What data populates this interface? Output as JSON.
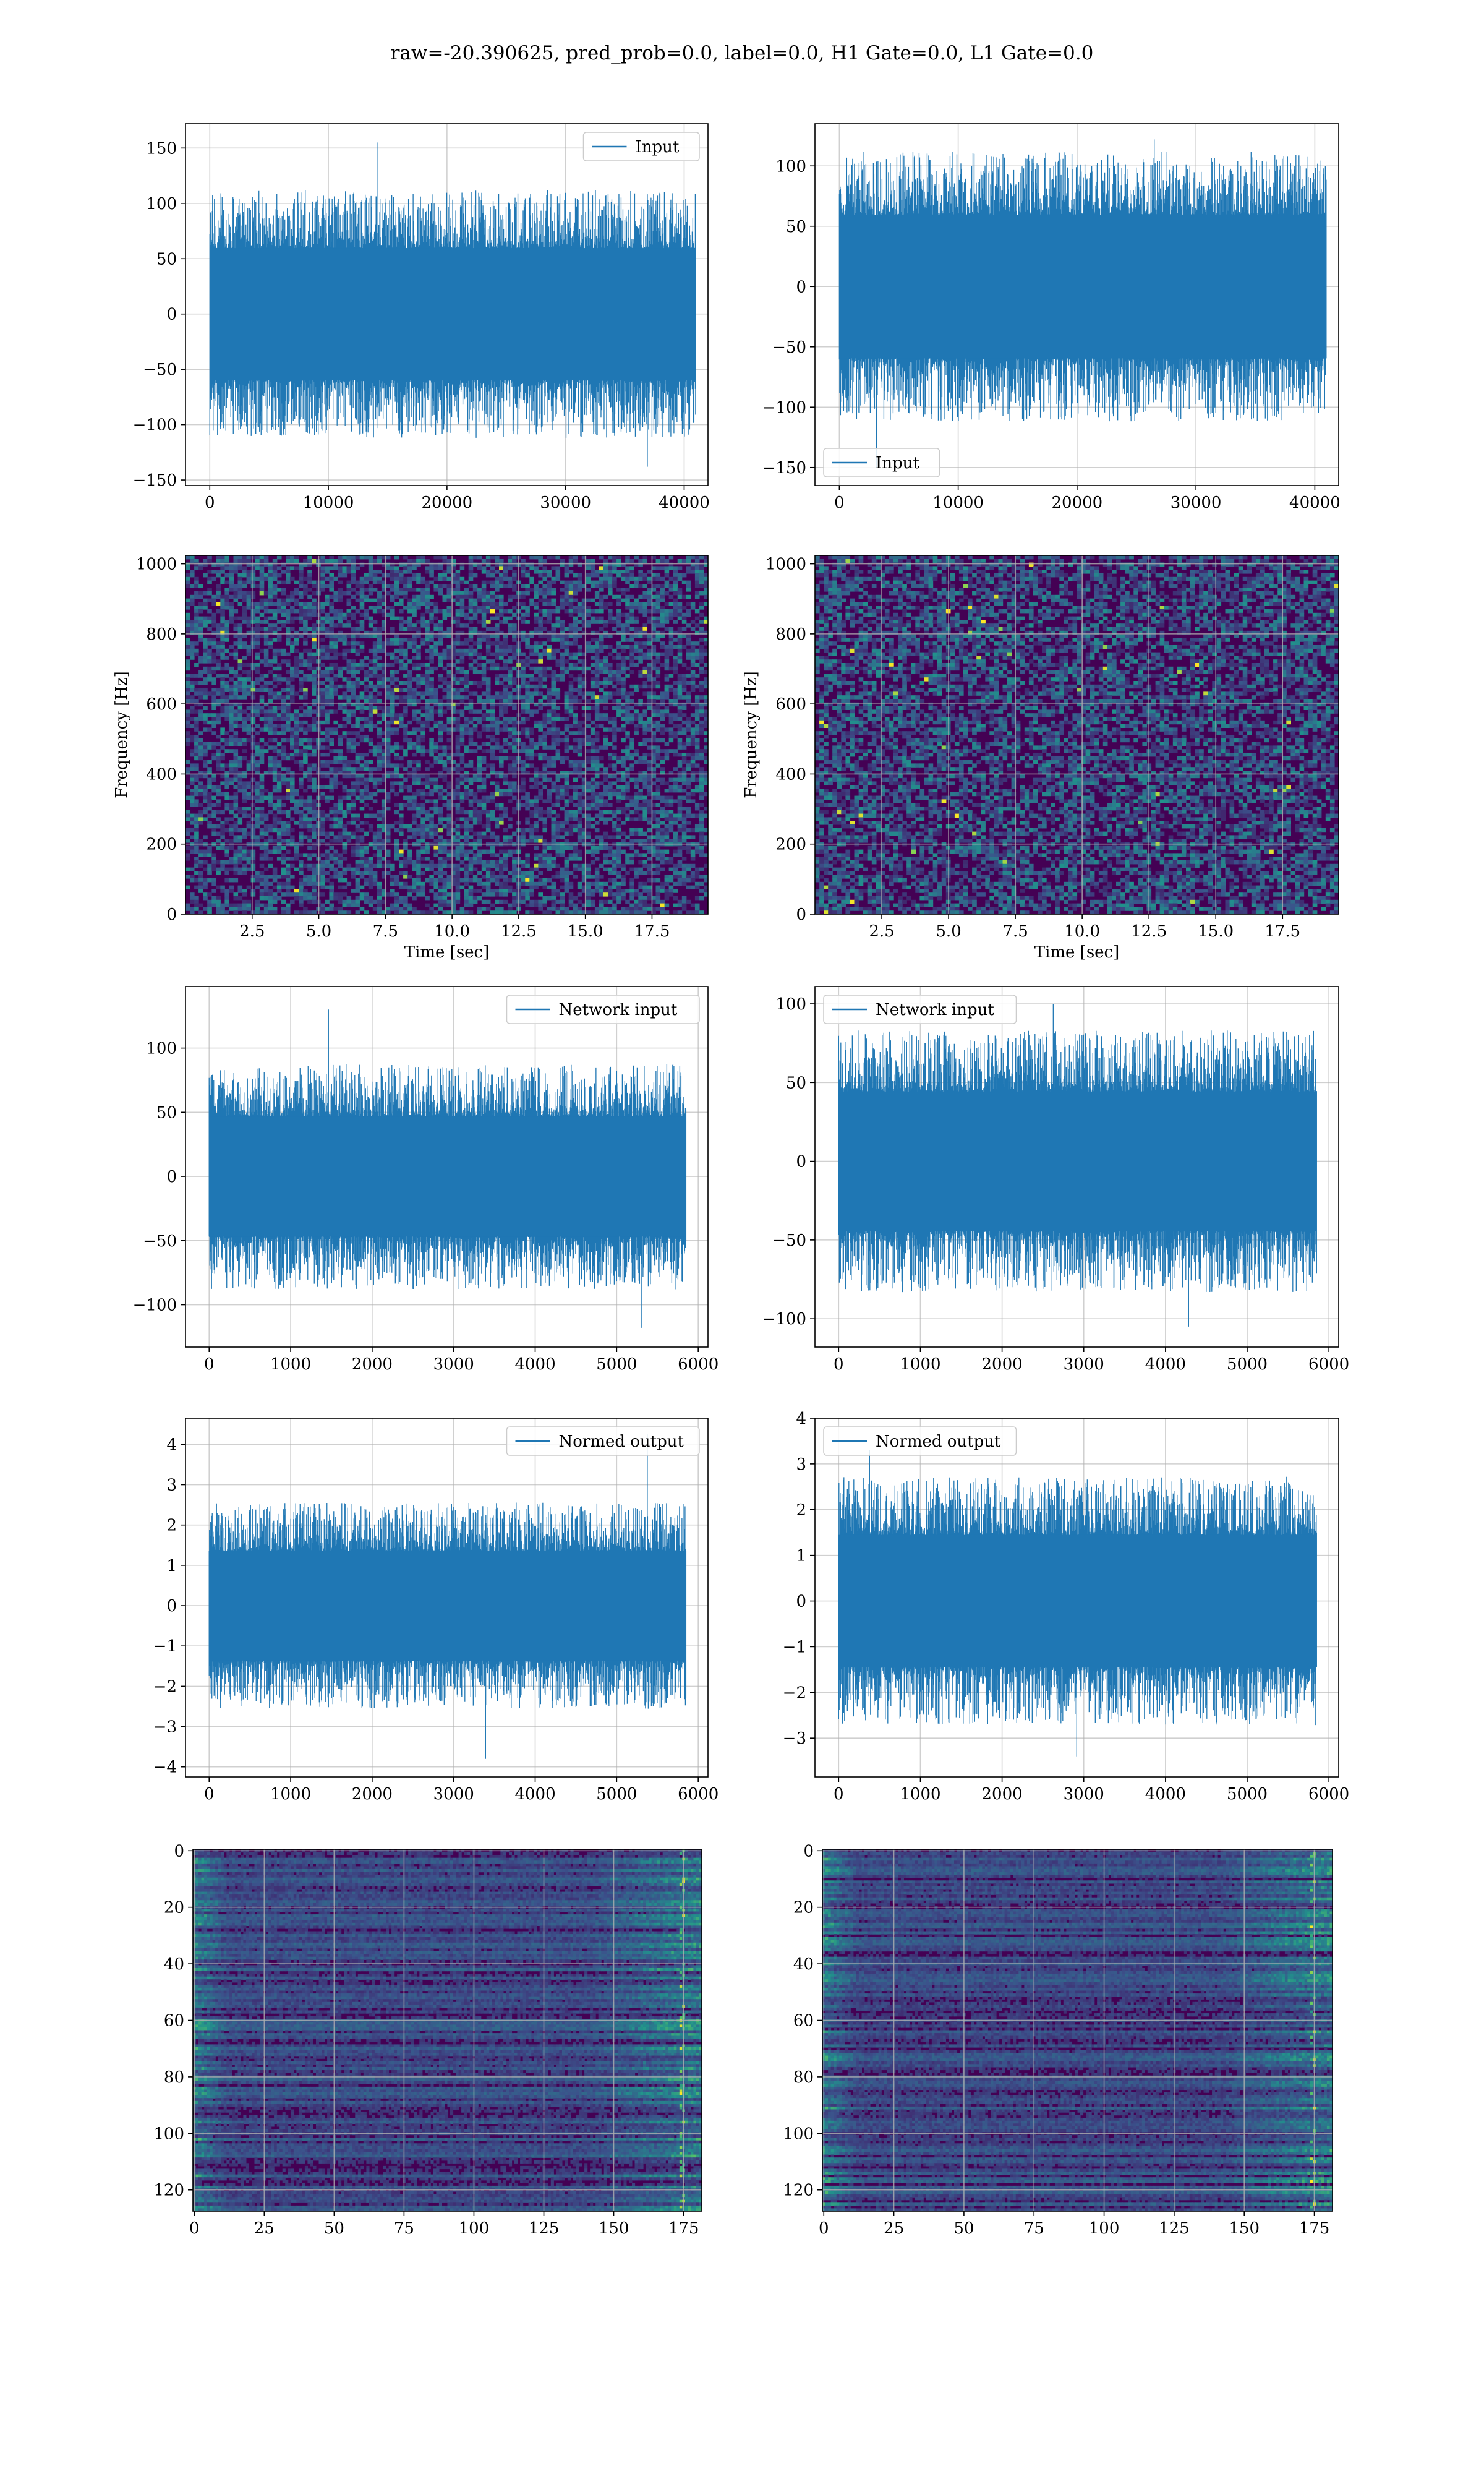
{
  "figure": {
    "suptitle": "raw=-20.390625, pred_prob=0.0, label=0.0, H1 Gate=0.0, L1 Gate=0.0",
    "line_color": "#1f77b4",
    "grid_color": "#b0b0b0",
    "viridis_dark": "#440154"
  },
  "chart_data": [
    {
      "id": "input-h1",
      "type": "line",
      "series": [
        {
          "name": "Input",
          "length": 40960
        }
      ],
      "x": {
        "ticks": [
          0,
          10000,
          20000,
          30000,
          40000
        ],
        "lim": [
          -2048,
          42008
        ]
      },
      "y": {
        "ticks": [
          -150,
          -100,
          -50,
          0,
          50,
          100,
          150
        ],
        "lim": [
          -155,
          172
        ]
      },
      "envelope": {
        "core": 70,
        "peak_max": 155,
        "peak_min": -138
      },
      "legend": "top-right",
      "grid": true
    },
    {
      "id": "input-l1",
      "type": "line",
      "series": [
        {
          "name": "Input",
          "length": 40960
        }
      ],
      "x": {
        "ticks": [
          0,
          10000,
          20000,
          30000,
          40000
        ],
        "lim": [
          -2048,
          42008
        ]
      },
      "y": {
        "ticks": [
          -150,
          -100,
          -50,
          0,
          50,
          100
        ],
        "lim": [
          -165,
          135
        ]
      },
      "envelope": {
        "core": 70,
        "peak_max": 122,
        "peak_min": -150
      },
      "legend": "bottom-left",
      "grid": true
    },
    {
      "id": "spectrogram-h1",
      "type": "heatmap",
      "xlabel": "Time [sec]",
      "ylabel": "Frequency [Hz]",
      "x": {
        "ticks": [
          2.5,
          5.0,
          7.5,
          10.0,
          12.5,
          15.0,
          17.5
        ],
        "lim": [
          0,
          19.6
        ]
      },
      "y": {
        "ticks": [
          0,
          200,
          400,
          600,
          800,
          1000
        ],
        "lim": [
          0,
          1024
        ]
      },
      "grid": true
    },
    {
      "id": "spectrogram-l1",
      "type": "heatmap",
      "xlabel": "Time [sec]",
      "ylabel": "Frequency [Hz]",
      "x": {
        "ticks": [
          2.5,
          5.0,
          7.5,
          10.0,
          12.5,
          15.0,
          17.5
        ],
        "lim": [
          0,
          19.6
        ]
      },
      "y": {
        "ticks": [
          0,
          200,
          400,
          600,
          800,
          1000
        ],
        "lim": [
          0,
          1024
        ]
      },
      "grid": true
    },
    {
      "id": "network-input-h1",
      "type": "line",
      "series": [
        {
          "name": "Network input",
          "length": 5850
        }
      ],
      "x": {
        "ticks": [
          0,
          1000,
          2000,
          3000,
          4000,
          5000,
          6000
        ],
        "lim": [
          -290,
          6120
        ]
      },
      "y": {
        "ticks": [
          -100,
          -50,
          0,
          50,
          100
        ],
        "lim": [
          -133,
          148
        ]
      },
      "envelope": {
        "core": 55,
        "peak_max": 130,
        "peak_min": -118
      },
      "legend": "top-right",
      "grid": true
    },
    {
      "id": "network-input-l1",
      "type": "line",
      "series": [
        {
          "name": "Network input",
          "length": 5850
        }
      ],
      "x": {
        "ticks": [
          0,
          1000,
          2000,
          3000,
          4000,
          5000,
          6000
        ],
        "lim": [
          -290,
          6120
        ]
      },
      "y": {
        "ticks": [
          -100,
          -50,
          0,
          50,
          100
        ],
        "lim": [
          -118,
          111
        ]
      },
      "envelope": {
        "core": 52,
        "peak_max": 100,
        "peak_min": -105
      },
      "legend": "top-left",
      "grid": true
    },
    {
      "id": "normed-output-h1",
      "type": "line",
      "series": [
        {
          "name": "Normed output",
          "length": 5850
        }
      ],
      "x": {
        "ticks": [
          0,
          1000,
          2000,
          3000,
          4000,
          5000,
          6000
        ],
        "lim": [
          -290,
          6120
        ]
      },
      "y": {
        "ticks": [
          -4,
          -3,
          -2,
          -1,
          0,
          1,
          2,
          3,
          4
        ],
        "lim": [
          -4.25,
          4.65
        ]
      },
      "envelope": {
        "core": 1.6,
        "peak_max": 4.25,
        "peak_min": -3.8
      },
      "legend": "top-right",
      "grid": true
    },
    {
      "id": "normed-output-l1",
      "type": "line",
      "series": [
        {
          "name": "Normed output",
          "length": 5850
        }
      ],
      "x": {
        "ticks": [
          0,
          1000,
          2000,
          3000,
          4000,
          5000,
          6000
        ],
        "lim": [
          -290,
          6120
        ]
      },
      "y": {
        "ticks": [
          -3,
          -2,
          -1,
          0,
          1,
          2,
          3,
          4
        ],
        "lim": [
          -3.85,
          4.0
        ]
      },
      "envelope": {
        "core": 1.7,
        "peak_max": 3.3,
        "peak_min": -3.4
      },
      "legend": "top-left",
      "grid": true
    },
    {
      "id": "feature-map-h1",
      "type": "heatmap",
      "x": {
        "ticks": [
          0,
          25,
          50,
          75,
          100,
          125,
          150,
          175
        ],
        "lim": [
          -0.5,
          181.5
        ]
      },
      "y": {
        "ticks": [
          0,
          20,
          40,
          60,
          80,
          100,
          120
        ],
        "lim": [
          127.5,
          -0.5
        ]
      },
      "grid": true
    },
    {
      "id": "feature-map-l1",
      "type": "heatmap",
      "x": {
        "ticks": [
          0,
          25,
          50,
          75,
          100,
          125,
          150,
          175
        ],
        "lim": [
          -0.5,
          181.5
        ]
      },
      "y": {
        "ticks": [
          0,
          20,
          40,
          60,
          80,
          100,
          120
        ],
        "lim": [
          127.5,
          -0.5
        ]
      },
      "grid": true
    }
  ]
}
